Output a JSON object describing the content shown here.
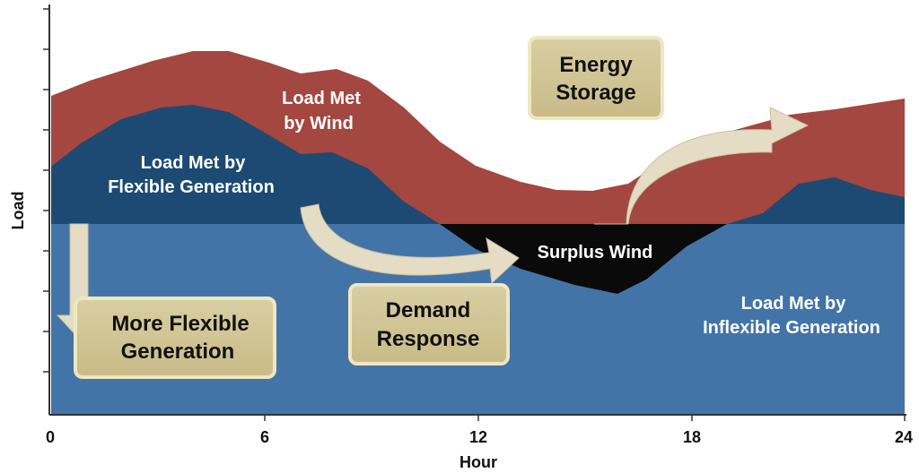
{
  "axes": {
    "y_label": "Load",
    "x_label": "Hour",
    "x_ticks": [
      "0",
      "6",
      "12",
      "18",
      "24"
    ]
  },
  "areas": {
    "wind": [
      "Load Met",
      "by Wind"
    ],
    "flexible": [
      "Load Met by",
      "Flexible Generation"
    ],
    "surplus": [
      "Surplus Wind"
    ],
    "inflexible": [
      "Load Met by",
      "Inflexible Generation"
    ]
  },
  "boxes": {
    "more_flexible": [
      "More Flexible",
      "Generation"
    ],
    "demand_response": [
      "Demand",
      "Response"
    ],
    "energy_storage": [
      "Energy",
      "Storage"
    ]
  }
}
